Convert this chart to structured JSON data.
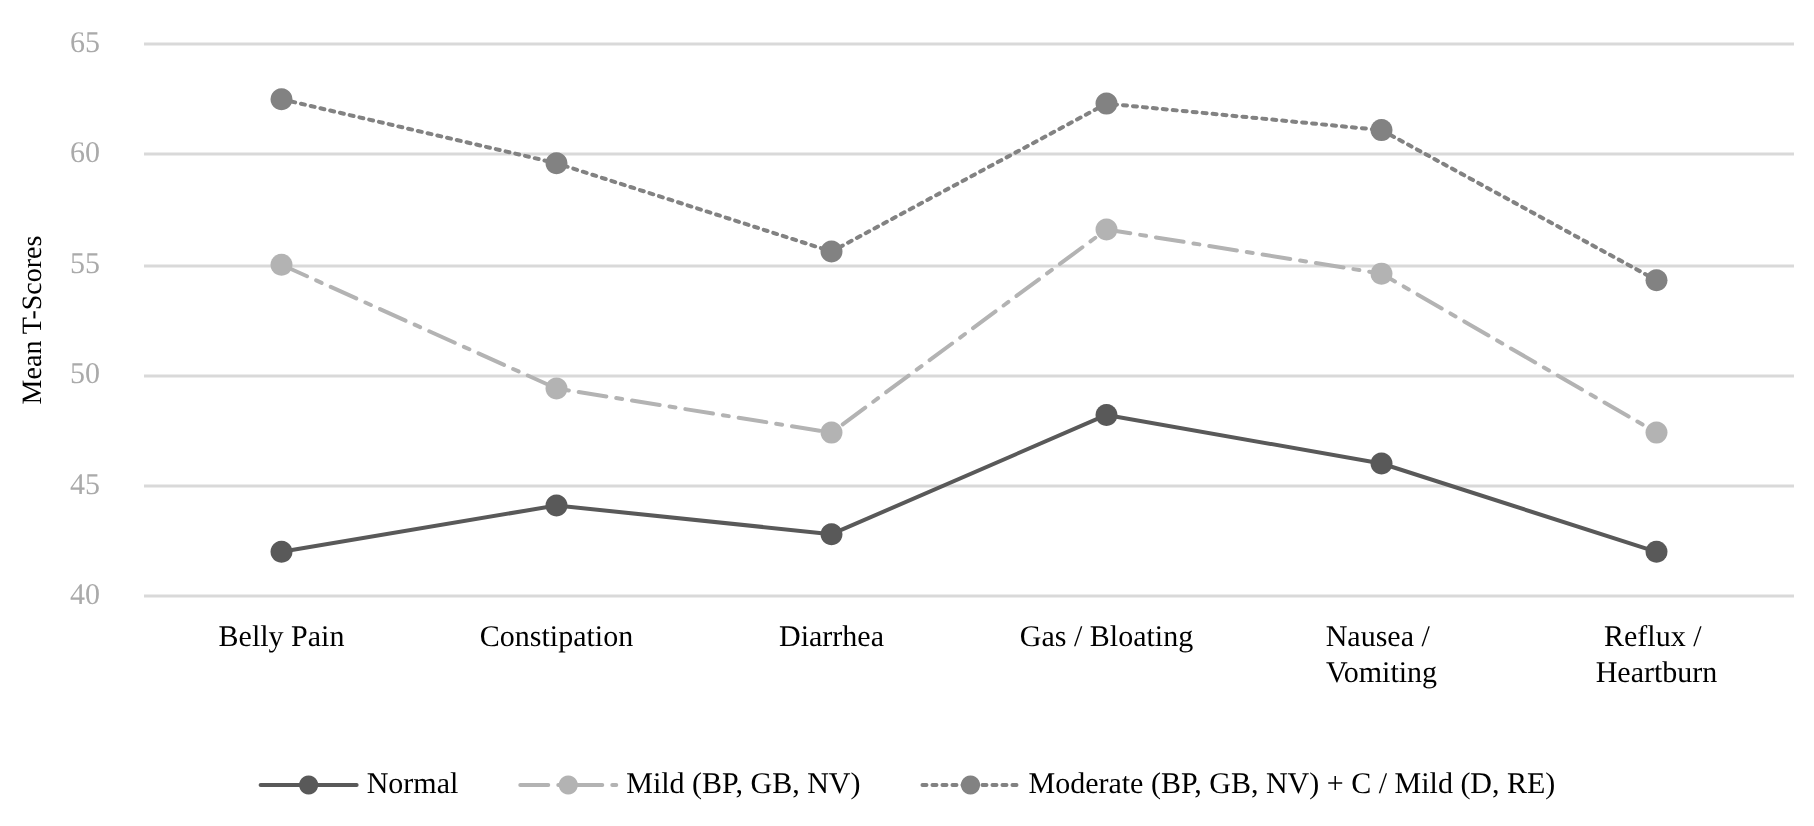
{
  "chart_data": {
    "type": "line",
    "ylabel": "Mean T-Scores",
    "categories": [
      "Belly Pain",
      "Constipation",
      "Diarrhea",
      "Gas / Bloating",
      "Nausea / Vomiting",
      "Reflux / Heartburn"
    ],
    "series": [
      {
        "name": "Normal",
        "color": "#595959",
        "values": [
          42.0,
          44.1,
          42.8,
          48.2,
          46.0,
          42.0
        ],
        "line_style": "solid"
      },
      {
        "name": "Mild (BP, GB, NV)",
        "color": "#b3b3b3",
        "values": [
          55.0,
          49.4,
          47.4,
          56.6,
          54.6,
          47.4
        ],
        "line_style": "dashed"
      },
      {
        "name": "Moderate (BP, GB, NV) + C / Mild (D, RE)",
        "color": "#828282",
        "values": [
          62.5,
          59.6,
          55.6,
          62.3,
          61.1,
          54.3
        ],
        "line_style": "dotted"
      }
    ],
    "ylim": [
      40,
      65
    ],
    "yticks": [
      40,
      45,
      50,
      55,
      60,
      65
    ],
    "grid": "y",
    "legend": "bottom",
    "marker": "circle"
  }
}
